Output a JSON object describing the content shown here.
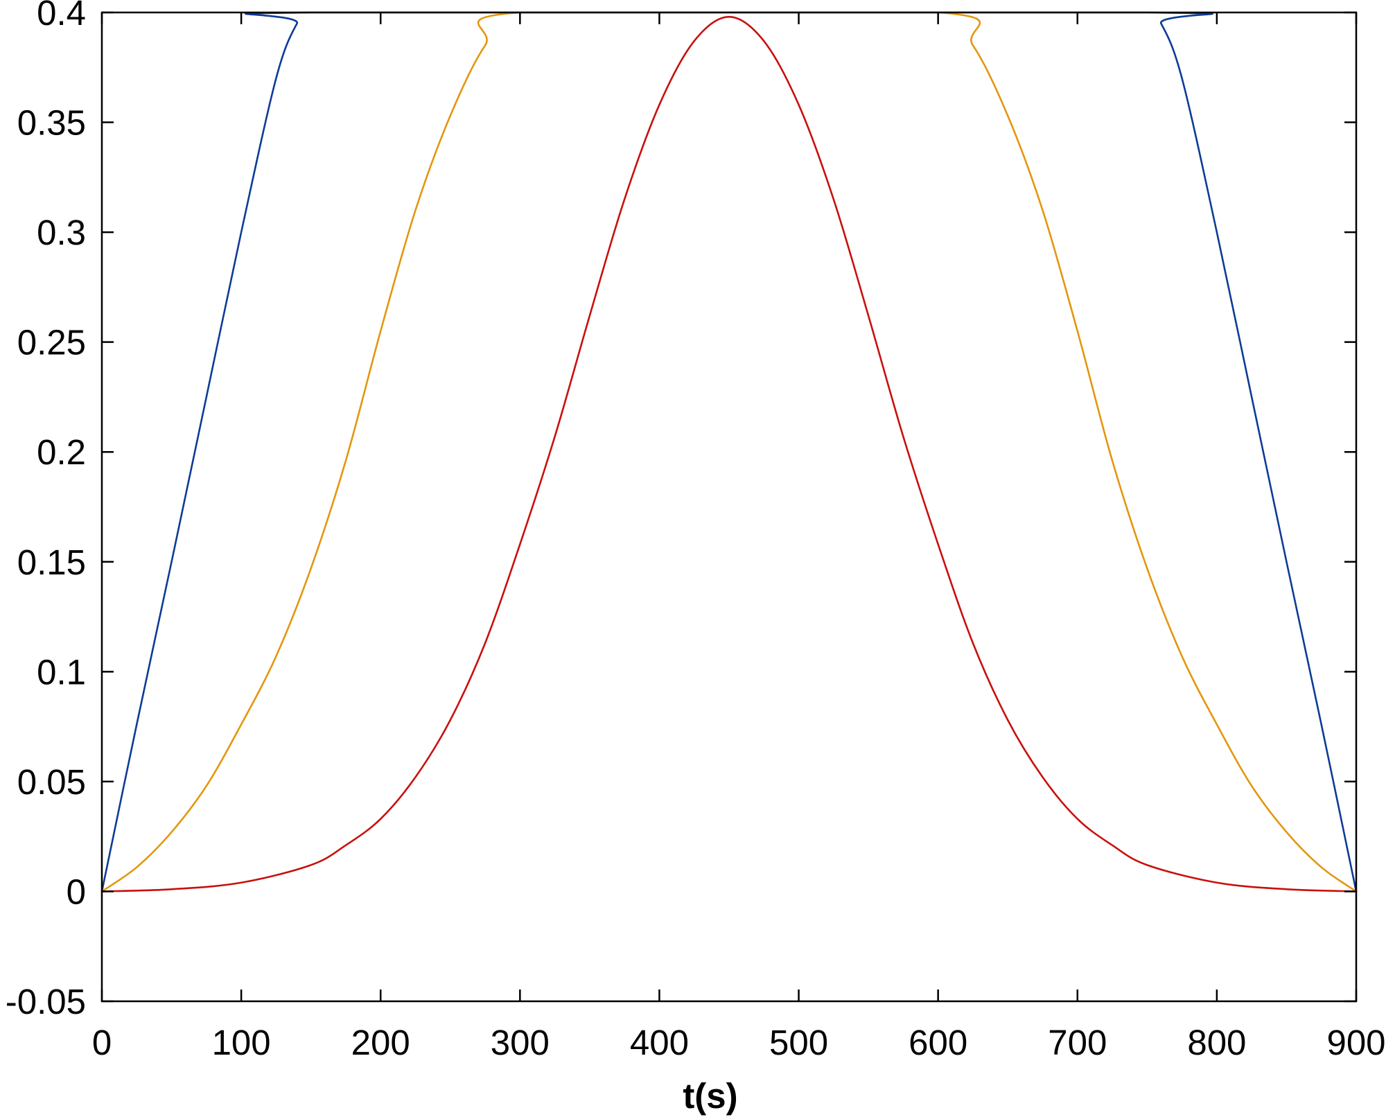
{
  "chart_data": {
    "type": "line",
    "title": "",
    "xlabel": "t(s)",
    "ylabel": "",
    "xlim": [
      0,
      900
    ],
    "ylim": [
      -0.05,
      0.4
    ],
    "xticks": [
      0,
      100,
      200,
      300,
      400,
      500,
      600,
      700,
      800,
      900
    ],
    "yticks": [
      -0.05,
      0,
      0.05,
      0.1,
      0.15,
      0.2,
      0.25,
      0.3,
      0.35,
      0.4
    ],
    "xtick_labels": [
      "0",
      "100",
      "200",
      "300",
      "400",
      "500",
      "600",
      "700",
      "800",
      "900"
    ],
    "ytick_labels": [
      "-0.05",
      "0",
      "0.05",
      "0.1",
      "0.15",
      "0.2",
      "0.25",
      "0.3",
      "0.35",
      "0.4"
    ],
    "grid": false,
    "legend": "none",
    "series": [
      {
        "color": "#0d3b97",
        "x": [
          0,
          25,
          50,
          75,
          100,
          125,
          140,
          150,
          750,
          760,
          775,
          800,
          825,
          850,
          875,
          900
        ],
        "y": [
          0,
          0.076,
          0.15,
          0.225,
          0.3,
          0.37,
          0.395,
          0.4,
          0.4,
          0.395,
          0.37,
          0.3,
          0.225,
          0.15,
          0.076,
          0
        ]
      },
      {
        "color": "#e3960d",
        "x": [
          0,
          25,
          50,
          75,
          100,
          125,
          150,
          175,
          200,
          225,
          250,
          275,
          300,
          600,
          625,
          650,
          675,
          700,
          725,
          750,
          775,
          800,
          825,
          850,
          875,
          900
        ],
        "y": [
          0,
          0.011,
          0.027,
          0.048,
          0.076,
          0.107,
          0.147,
          0.196,
          0.255,
          0.31,
          0.353,
          0.385,
          0.4,
          0.4,
          0.385,
          0.353,
          0.31,
          0.255,
          0.196,
          0.147,
          0.107,
          0.076,
          0.048,
          0.027,
          0.011,
          0
        ]
      },
      {
        "color": "#c8100d",
        "x": [
          0,
          50,
          100,
          150,
          175,
          200,
          225,
          250,
          275,
          300,
          325,
          350,
          375,
          400,
          425,
          450,
          475,
          500,
          525,
          550,
          575,
          600,
          625,
          650,
          675,
          700,
          725,
          750,
          800,
          850,
          900
        ],
        "y": [
          0,
          0.001,
          0.004,
          0.012,
          0.021,
          0.033,
          0.052,
          0.078,
          0.113,
          0.158,
          0.207,
          0.262,
          0.315,
          0.358,
          0.387,
          0.398,
          0.387,
          0.358,
          0.315,
          0.262,
          0.207,
          0.158,
          0.113,
          0.078,
          0.052,
          0.033,
          0.021,
          0.012,
          0.004,
          0.001,
          0
        ]
      }
    ]
  }
}
